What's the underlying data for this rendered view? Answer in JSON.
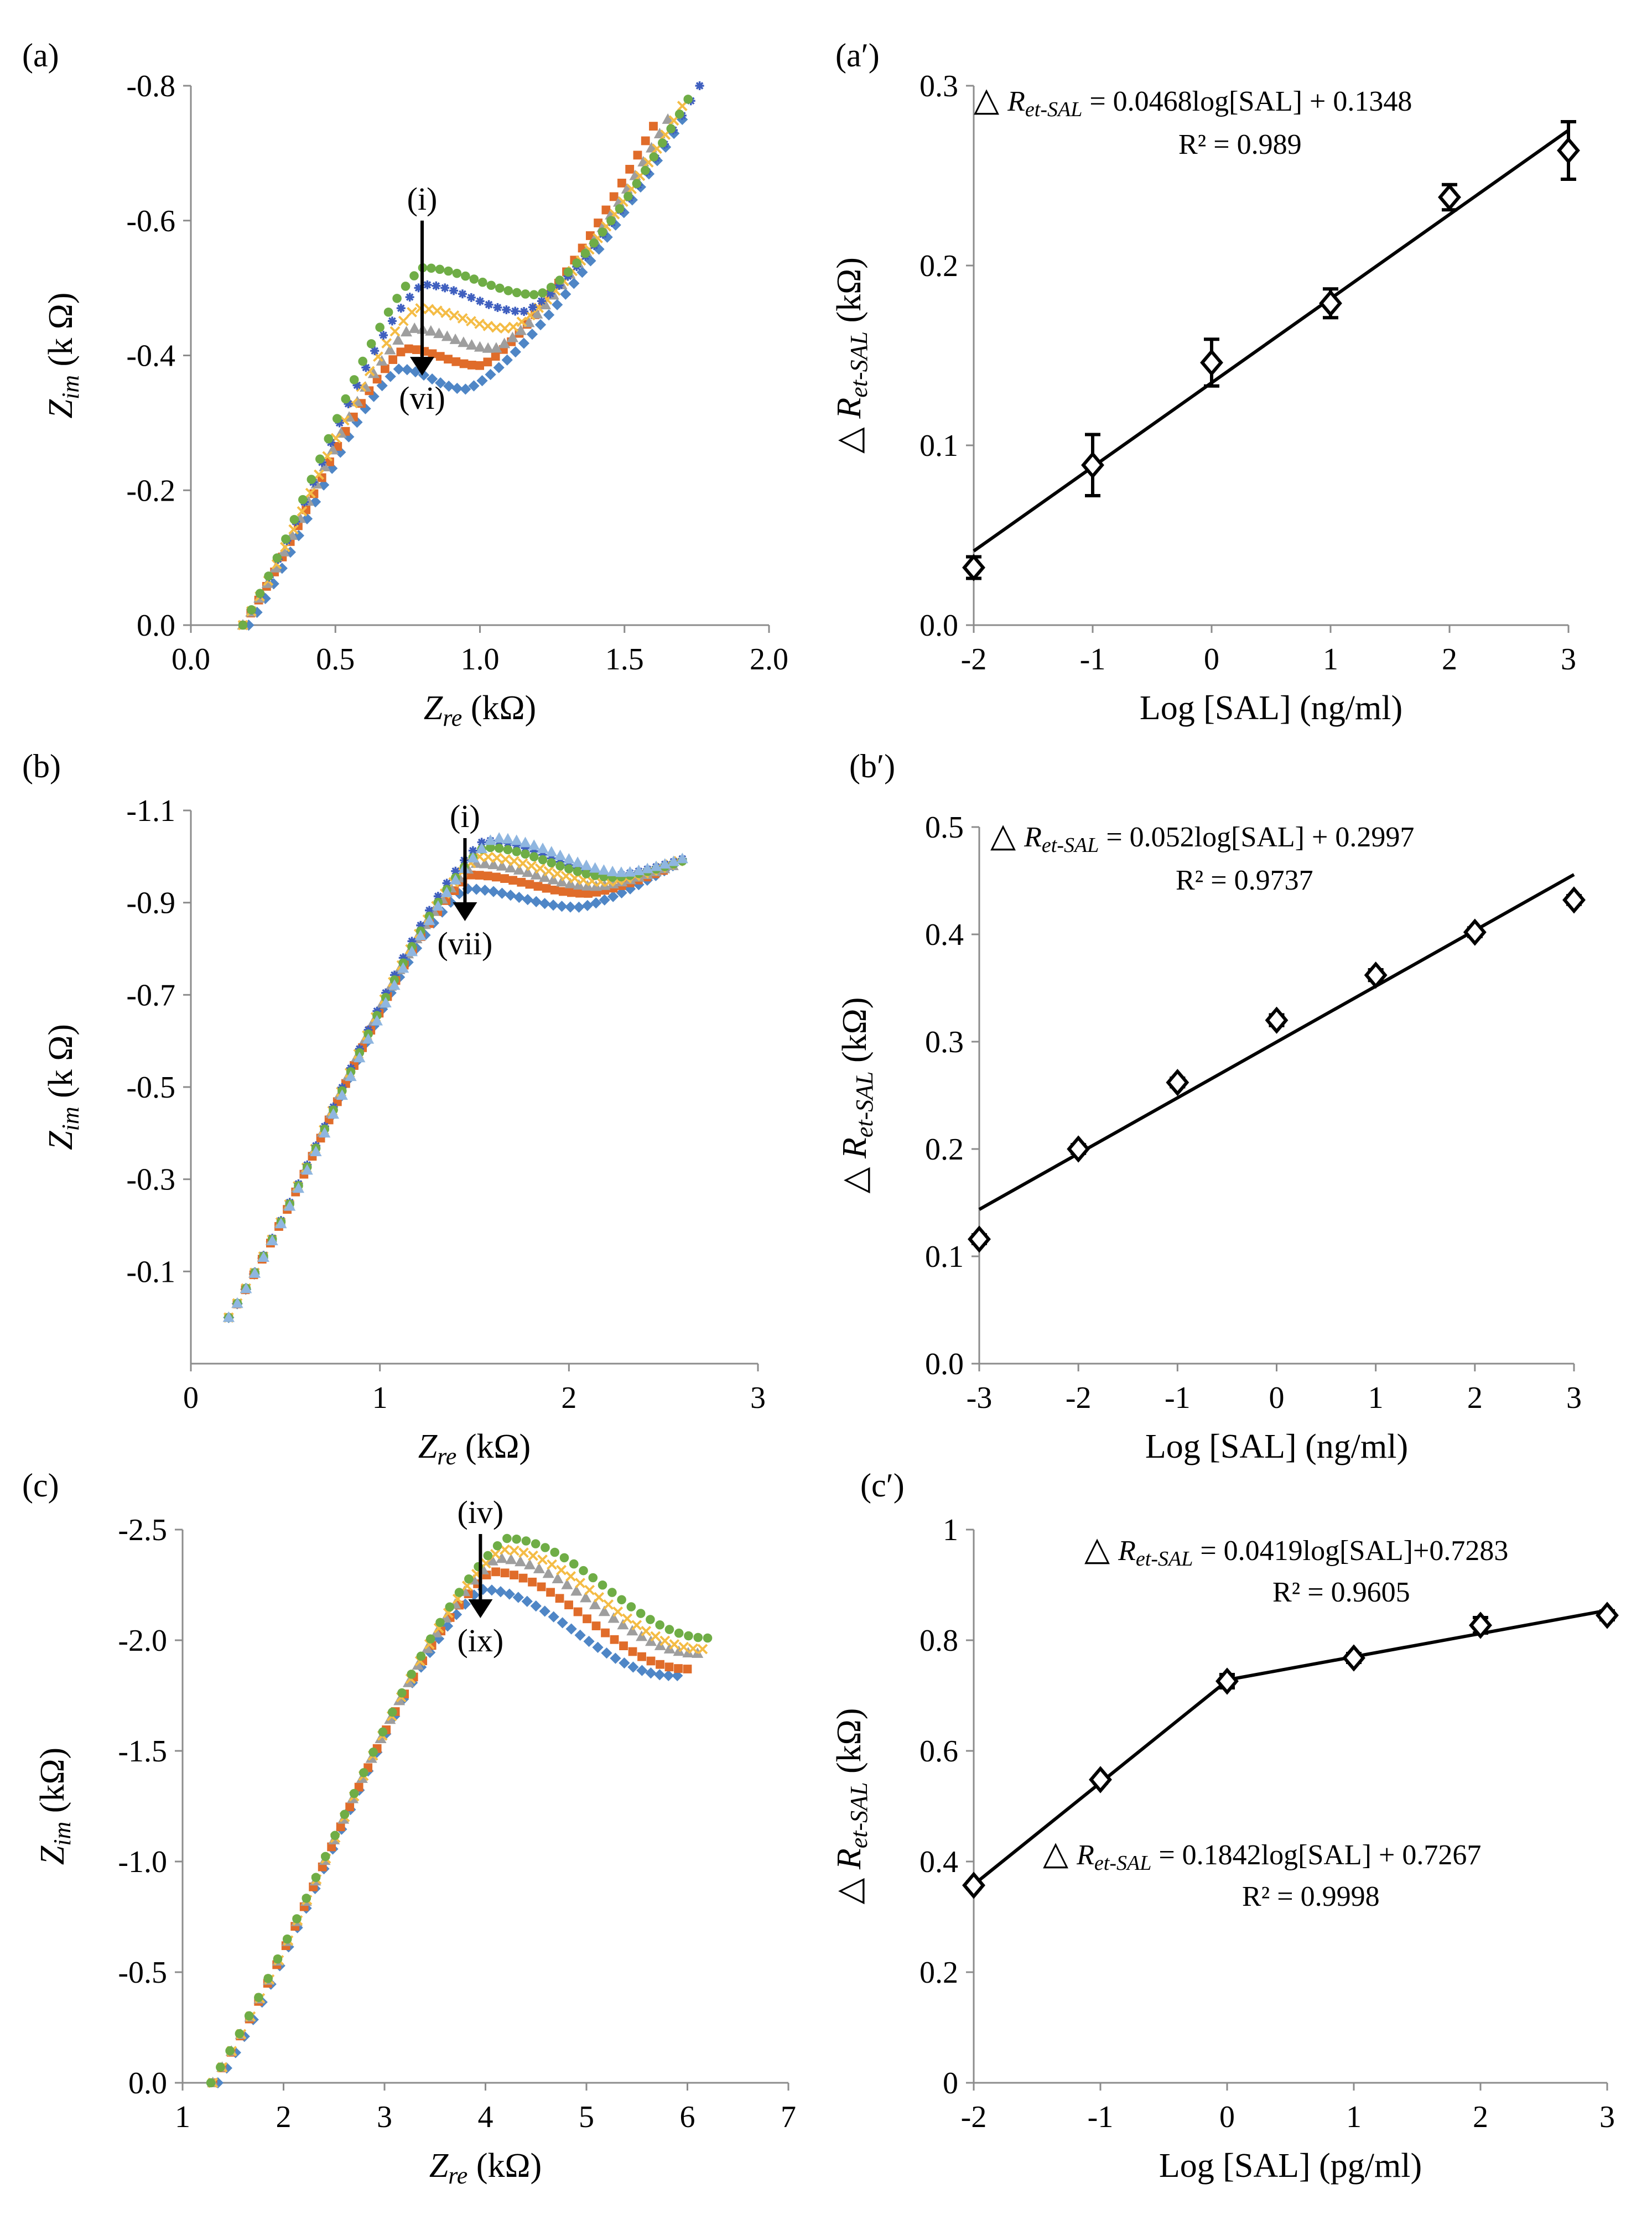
{
  "colors": {
    "axis": "#8c8c8c",
    "ink": "#000000",
    "blue": "#4f86c6",
    "orange": "#e06c2a",
    "gray": "#9e9e9e",
    "yellow": "#f4bc45",
    "navy": "#3f5fbf",
    "green": "#6fad46",
    "lightblue": "#8fb6e0"
  },
  "chart_data": [
    {
      "id": "a",
      "panel_label": "(a)",
      "type": "scatter",
      "x_label": "Z",
      "x_label_sub": "re",
      "x_label_unit": " (kΩ)",
      "y_label": "Z",
      "y_label_sub": "im",
      "y_label_unit": " (k Ω)",
      "xlim": [
        0,
        2
      ],
      "ylim": [
        0,
        -0.8
      ],
      "x_ticks": [
        0,
        0.5,
        1.0,
        1.5,
        2.0
      ],
      "x_tick_labels": [
        "0.0",
        "0.5",
        "1.0",
        "1.5",
        "2.0"
      ],
      "y_ticks": [
        0,
        -0.2,
        -0.4,
        -0.6,
        -0.8
      ],
      "y_tick_labels": [
        "0.0",
        "-0.2",
        "-0.4",
        "-0.6",
        "-0.8"
      ],
      "arrow": {
        "start_label": "(i)",
        "end_label": "(vi)",
        "x": 0.8,
        "y_start": -0.6,
        "y_end": -0.37
      },
      "series": [
        {
          "color": "blue",
          "marker": "diamond",
          "x0": 0.2,
          "xe": 1.7,
          "peak_x": 0.72,
          "peak_y": 0.38,
          "min_x": 0.95,
          "min_y": 0.35,
          "end_y": 0.75
        },
        {
          "color": "orange",
          "marker": "square",
          "x0": 0.18,
          "xe": 1.6,
          "peak_x": 0.74,
          "peak_y": 0.41,
          "min_x": 1.0,
          "min_y": 0.385,
          "end_y": 0.74
        },
        {
          "color": "gray",
          "marker": "triangle",
          "x0": 0.18,
          "xe": 1.65,
          "peak_x": 0.76,
          "peak_y": 0.44,
          "min_x": 1.05,
          "min_y": 0.41,
          "end_y": 0.75
        },
        {
          "color": "yellow",
          "marker": "cross",
          "x0": 0.18,
          "xe": 1.7,
          "peak_x": 0.78,
          "peak_y": 0.47,
          "min_x": 1.1,
          "min_y": 0.44,
          "end_y": 0.77
        },
        {
          "color": "navy",
          "marker": "star",
          "x0": 0.18,
          "xe": 1.76,
          "peak_x": 0.8,
          "peak_y": 0.505,
          "min_x": 1.15,
          "min_y": 0.465,
          "end_y": 0.8
        },
        {
          "color": "green",
          "marker": "circle",
          "x0": 0.18,
          "xe": 1.72,
          "peak_x": 0.8,
          "peak_y": 0.53,
          "min_x": 1.2,
          "min_y": 0.49,
          "end_y": 0.78
        }
      ]
    },
    {
      "id": "a2",
      "panel_label": "(a′)",
      "type": "scatter",
      "x_label": "Log [SAL] (ng/ml)",
      "y_label_prefix": "△ ",
      "y_label": "R",
      "y_label_sub": "et-SAL",
      "y_label_unit": " (kΩ)",
      "xlim": [
        -2,
        3
      ],
      "ylim": [
        0,
        0.3
      ],
      "x_ticks": [
        -2,
        -1,
        0,
        1,
        2,
        3
      ],
      "x_tick_labels": [
        "-2",
        "-1",
        "0",
        "1",
        "2",
        "3"
      ],
      "y_ticks": [
        0,
        0.1,
        0.2,
        0.3
      ],
      "y_tick_labels": [
        "0.0",
        "0.1",
        "0.2",
        "0.3"
      ],
      "x": [
        -2,
        -1,
        0,
        1,
        2,
        3
      ],
      "y": [
        0.032,
        0.089,
        0.146,
        0.179,
        0.238,
        0.264
      ],
      "error": [
        0.006,
        0.017,
        0.013,
        0.008,
        0.007,
        0.016
      ],
      "fit_segments": [
        {
          "slope": 0.0468,
          "intercept": 0.1348,
          "x_from": -2,
          "x_to": 3
        }
      ],
      "equations": [
        {
          "prefix": "△ ",
          "symbol": "R",
          "sub": "et-SAL",
          "text": "  = 0.0468log[SAL] + 0.1348",
          "r2": "R² = 0.989",
          "x": 1760,
          "y": 200,
          "r2x": 2130,
          "r2y": 278
        }
      ]
    },
    {
      "id": "b",
      "panel_label": "(b)",
      "type": "scatter",
      "x_label": "Z",
      "x_label_sub": "re",
      "x_label_unit": " (kΩ)",
      "y_label": "Z",
      "y_label_sub": "im",
      "y_label_unit": " (k Ω)",
      "xlim": [
        0,
        3
      ],
      "ylim": [
        0.1,
        -1.1
      ],
      "x_ticks": [
        0,
        1,
        2,
        3
      ],
      "x_tick_labels": [
        "0",
        "1",
        "2",
        "3"
      ],
      "y_ticks": [
        -0.1,
        -0.3,
        -0.5,
        -0.7,
        -0.9,
        -1.1
      ],
      "y_tick_labels": [
        "-0.1",
        "-0.3",
        "-0.5",
        "-0.7",
        "-0.9",
        "-1.1"
      ],
      "arrow": {
        "start_label": "(i)",
        "end_label": "(vii)",
        "x": 1.45,
        "y_start": -1.04,
        "y_end": -0.86
      },
      "series": [
        {
          "color": "blue",
          "marker": "diamond",
          "x0": 0.2,
          "xe": 2.55,
          "peak_x": 1.45,
          "peak_y": 0.93,
          "min_x": 2.05,
          "min_y": 0.89,
          "end_y": 0.98
        },
        {
          "color": "orange",
          "marker": "square",
          "x0": 0.2,
          "xe": 2.5,
          "peak_x": 1.48,
          "peak_y": 0.96,
          "min_x": 2.1,
          "min_y": 0.92,
          "end_y": 0.97
        },
        {
          "color": "gray",
          "marker": "triangle",
          "x0": 0.2,
          "xe": 2.55,
          "peak_x": 1.5,
          "peak_y": 0.985,
          "min_x": 2.15,
          "min_y": 0.935,
          "end_y": 0.98
        },
        {
          "color": "yellow",
          "marker": "cross",
          "x0": 0.2,
          "xe": 2.58,
          "peak_x": 1.52,
          "peak_y": 1.0,
          "min_x": 2.2,
          "min_y": 0.945,
          "end_y": 0.99
        },
        {
          "color": "navy",
          "marker": "star",
          "x0": 0.2,
          "xe": 2.6,
          "peak_x": 1.55,
          "peak_y": 1.035,
          "min_x": 2.25,
          "min_y": 0.96,
          "end_y": 0.995
        },
        {
          "color": "green",
          "marker": "circle",
          "x0": 0.2,
          "xe": 2.6,
          "peak_x": 1.55,
          "peak_y": 1.02,
          "min_x": 2.25,
          "min_y": 0.955,
          "end_y": 0.99
        },
        {
          "color": "lightblue",
          "marker": "triangle",
          "x0": 0.2,
          "xe": 2.6,
          "peak_x": 1.6,
          "peak_y": 1.04,
          "min_x": 2.3,
          "min_y": 0.965,
          "end_y": 0.995
        }
      ]
    },
    {
      "id": "b2",
      "panel_label": "(b′)",
      "type": "scatter",
      "x_label": "Log [SAL] (ng/ml)",
      "y_label_prefix": "△ ",
      "y_label": "R",
      "y_label_sub": "et-SAL",
      "y_label_unit": " (kΩ)",
      "xlim": [
        -3,
        3
      ],
      "ylim": [
        0,
        0.5
      ],
      "x_ticks": [
        -3,
        -2,
        -1,
        0,
        1,
        2,
        3
      ],
      "x_tick_labels": [
        "-3",
        "-2",
        "-1",
        "0",
        "1",
        "2",
        "3"
      ],
      "y_ticks": [
        0,
        0.1,
        0.2,
        0.3,
        0.4,
        0.5
      ],
      "y_tick_labels": [
        "0.0",
        "0.1",
        "0.2",
        "0.3",
        "0.4",
        "0.5"
      ],
      "x": [
        -3,
        -2,
        -1,
        0,
        1,
        2,
        3
      ],
      "y": [
        0.116,
        0.2,
        0.262,
        0.32,
        0.362,
        0.402,
        0.432
      ],
      "error": [
        0.004,
        0.004,
        0.004,
        0.005,
        0.005,
        0.004,
        0.004
      ],
      "fit_segments": [
        {
          "slope": 0.052,
          "intercept": 0.2997,
          "x_from": -3,
          "x_to": 3
        }
      ],
      "equations": [
        {
          "prefix": "△ ",
          "symbol": "R",
          "sub": "et-SAL",
          "text": "  = 0.052log[SAL] + 0.2997",
          "r2": "R² = 0.9737",
          "x": 1790,
          "y": 1530,
          "r2x": 2125,
          "r2y": 1608
        }
      ]
    },
    {
      "id": "c",
      "panel_label": "(c)",
      "type": "scatter",
      "x_label": "Z",
      "x_label_sub": "re",
      "x_label_unit": " (kΩ)",
      "y_label": "Z",
      "y_label_sub": "im",
      "y_label_unit": " (kΩ)",
      "xlim": [
        1,
        7
      ],
      "ylim": [
        0,
        -2.5
      ],
      "x_ticks": [
        1,
        2,
        3,
        4,
        5,
        6,
        7
      ],
      "x_tick_labels": [
        "1",
        "2",
        "3",
        "4",
        "5",
        "6",
        "7"
      ],
      "y_ticks": [
        0,
        -0.5,
        -1.0,
        -1.5,
        -2.0,
        -2.5
      ],
      "y_tick_labels": [
        "0.0",
        "-0.5",
        "-1.0",
        "-1.5",
        "-2.0",
        "-2.5"
      ],
      "arrow": {
        "start_label": "(iv)",
        "end_label": "(ix)",
        "x": 3.95,
        "y_start": -2.48,
        "y_end": -2.1
      },
      "series": [
        {
          "color": "blue",
          "marker": "diamond",
          "x0": 1.35,
          "xe": 5.9,
          "peak_x": 3.95,
          "peak_y": 2.23,
          "min_x": 5.85,
          "min_y": 1.84,
          "end_y": 1.84
        },
        {
          "color": "orange",
          "marker": "square",
          "x0": 1.3,
          "xe": 6.0,
          "peak_x": 4.05,
          "peak_y": 2.31,
          "min_x": 6.0,
          "min_y": 1.87,
          "end_y": 1.87
        },
        {
          "color": "gray",
          "marker": "triangle",
          "x0": 1.3,
          "xe": 6.1,
          "peak_x": 4.1,
          "peak_y": 2.37,
          "min_x": 6.1,
          "min_y": 1.94,
          "end_y": 1.94
        },
        {
          "color": "yellow",
          "marker": "cross",
          "x0": 1.3,
          "xe": 6.15,
          "peak_x": 4.15,
          "peak_y": 2.41,
          "min_x": 6.15,
          "min_y": 1.96,
          "end_y": 1.96
        },
        {
          "color": "green",
          "marker": "circle",
          "x0": 1.28,
          "xe": 6.2,
          "peak_x": 4.2,
          "peak_y": 2.46,
          "min_x": 6.2,
          "min_y": 2.01,
          "end_y": 2.01
        }
      ]
    },
    {
      "id": "c2",
      "panel_label": "(c′)",
      "type": "scatter",
      "x_label": "Log [SAL] (pg/ml)",
      "y_label_prefix": "△ ",
      "y_label": "R",
      "y_label_sub": "et-SAL",
      "y_label_unit": " (kΩ)",
      "xlim": [
        -2,
        3
      ],
      "ylim": [
        0,
        1
      ],
      "x_ticks": [
        -2,
        -1,
        0,
        1,
        2,
        3
      ],
      "x_tick_labels": [
        "-2",
        "-1",
        "0",
        "1",
        "2",
        "3"
      ],
      "y_ticks": [
        0,
        0.2,
        0.4,
        0.6,
        0.8,
        1
      ],
      "y_tick_labels": [
        "0",
        "0.2",
        "0.4",
        "0.6",
        "0.8",
        "1"
      ],
      "x": [
        -2,
        -1,
        0,
        1,
        2,
        3
      ],
      "y": [
        0.357,
        0.548,
        0.726,
        0.768,
        0.827,
        0.845
      ],
      "error": [
        0.006,
        0.006,
        0.012,
        0.008,
        0.014,
        0.008
      ],
      "fit_segments": [
        {
          "slope": 0.1842,
          "intercept": 0.7267,
          "x_from": -2,
          "x_to": 0
        },
        {
          "slope": 0.0419,
          "intercept": 0.7283,
          "x_from": 0,
          "x_to": 3
        }
      ],
      "equations": [
        {
          "prefix": "△ ",
          "symbol": "R",
          "sub": "et-SAL",
          "text": "  = 0.0419log[SAL]+0.7283",
          "r2": "R² = 0.9605",
          "x": 1960,
          "y": 2820,
          "r2x": 2300,
          "r2y": 2895
        },
        {
          "prefix": "△ ",
          "symbol": "R",
          "sub": "et-SAL",
          "text": "  = 0.1842log[SAL] + 0.7267",
          "r2": "R² = 0.9998",
          "x": 1885,
          "y": 3370,
          "r2x": 2245,
          "r2y": 3445
        }
      ]
    }
  ]
}
